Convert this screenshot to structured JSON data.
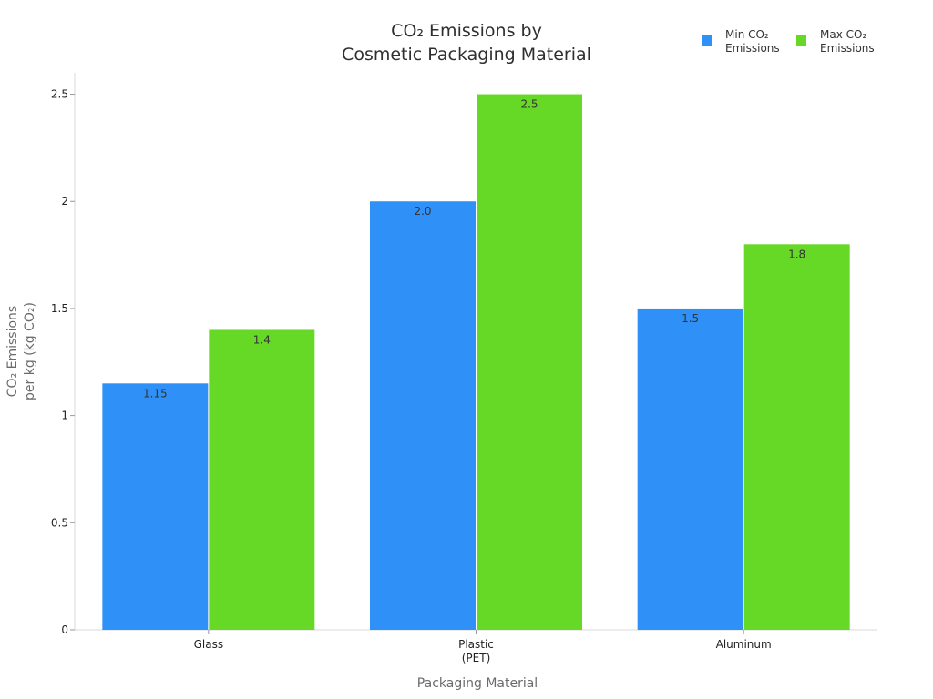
{
  "chart_data": {
    "type": "bar",
    "title_lines": [
      "CO₂ Emissions by",
      "Cosmetic Packaging Material"
    ],
    "xlabel": "Packaging Material",
    "ylabel_lines": [
      "CO₂ Emissions",
      "per kg (kg CO₂)"
    ],
    "categories": [
      [
        "Glass"
      ],
      [
        "Plastic",
        "(PET)"
      ],
      [
        "Aluminum"
      ]
    ],
    "series": [
      {
        "name_lines": [
          "Min CO₂",
          "Emissions"
        ],
        "color": "#2f91f7",
        "values": [
          1.15,
          2.0,
          1.5
        ],
        "labels": [
          "1.15",
          "2.0",
          "1.5"
        ]
      },
      {
        "name_lines": [
          "Max CO₂",
          "Emissions"
        ],
        "color": "#66d926",
        "values": [
          1.4,
          2.5,
          1.8
        ],
        "labels": [
          "1.4",
          "2.5",
          "1.8"
        ]
      }
    ],
    "ylim": [
      0,
      2.6
    ],
    "yticks": [
      0,
      0.5,
      1,
      1.5,
      2,
      2.5
    ],
    "ytick_labels": [
      "0",
      "0.5",
      "1",
      "1.5",
      "2",
      "2.5"
    ],
    "grid": false,
    "legend_position": "top-right"
  }
}
